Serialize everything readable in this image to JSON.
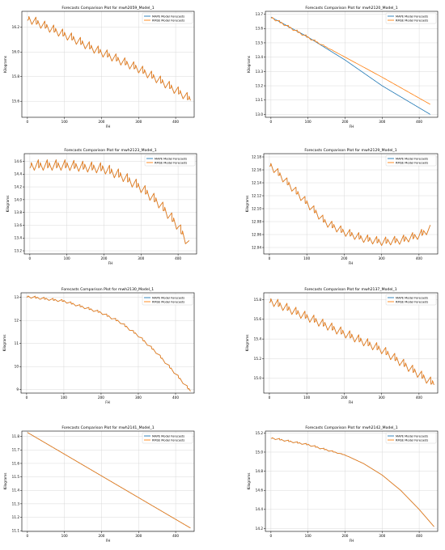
{
  "chart_data": [
    {
      "type": "line",
      "title": "Forecasts Comparison Plot for mwh2059_Model_1",
      "xlabel": "FH",
      "ylabel": "Kilograms",
      "xlim": [
        -15,
        450
      ],
      "ylim": [
        15.47,
        16.33
      ],
      "xticks": [
        0,
        100,
        200,
        300,
        400
      ],
      "yticks": [
        15.6,
        15.8,
        16.0,
        16.2
      ],
      "ytick_decimals": 1,
      "grid": true,
      "legend": "top-right",
      "series": [
        {
          "name": "MAPE Model Forecasts",
          "color": "#1f77b4",
          "shape": "periodic",
          "x": [
            0,
            60,
            120,
            180,
            240,
            300,
            360,
            420,
            440
          ],
          "y": [
            16.28,
            16.2,
            16.12,
            16.03,
            15.95,
            15.87,
            15.77,
            15.66,
            15.62
          ],
          "amplitude": 0.04,
          "period": 24
        },
        {
          "name": "RMSE Model Forecasts",
          "color": "#ff7f0e",
          "shape": "periodic",
          "x": [
            0,
            60,
            120,
            180,
            240,
            300,
            360,
            420,
            440
          ],
          "y": [
            16.28,
            16.2,
            16.12,
            16.03,
            15.95,
            15.87,
            15.77,
            15.66,
            15.62
          ],
          "amplitude": 0.04,
          "period": 24
        }
      ]
    },
    {
      "type": "line",
      "title": "Forecasts Comparison Plot for mwh2120_Model_1",
      "xlabel": "FH",
      "ylabel": "Kilograms",
      "xlim": [
        -15,
        450
      ],
      "ylim": [
        12.98,
        13.72
      ],
      "xticks": [
        0,
        100,
        200,
        300,
        400
      ],
      "yticks": [
        13.0,
        13.1,
        13.2,
        13.3,
        13.4,
        13.5,
        13.6,
        13.7
      ],
      "ytick_decimals": 1,
      "grid": true,
      "legend": "top-right",
      "series": [
        {
          "name": "MAPE Model Forecasts",
          "color": "#1f77b4",
          "shape": "smooth",
          "x": [
            0,
            100,
            200,
            300,
            430
          ],
          "y": [
            13.68,
            13.54,
            13.38,
            13.2,
            13.0
          ]
        },
        {
          "name": "RMSE Model Forecasts",
          "color": "#ff7f0e",
          "shape": "periodic",
          "x": [
            0,
            100,
            200,
            300,
            430
          ],
          "y": [
            13.68,
            13.54,
            13.4,
            13.26,
            13.07
          ],
          "amplitude": 0.01,
          "period": 24,
          "fade_after": 100
        }
      ]
    },
    {
      "type": "line",
      "title": "Forecasts Comparison Plot for mwh2123_Model_1",
      "xlabel": "FH",
      "ylabel": "Kilograms",
      "xlim": [
        -15,
        450
      ],
      "ylim": [
        13.15,
        14.72
      ],
      "xticks": [
        0,
        100,
        200,
        300,
        400
      ],
      "yticks": [
        13.2,
        13.4,
        13.6,
        13.8,
        14.0,
        14.2,
        14.4,
        14.6
      ],
      "ytick_decimals": 1,
      "grid": true,
      "legend": "top-right",
      "series": [
        {
          "name": "MAPE Model Forecasts",
          "color": "#1f77b4",
          "shape": "periodic",
          "x": [
            0,
            100,
            200,
            250,
            300,
            350,
            400,
            430
          ],
          "y": [
            14.55,
            14.55,
            14.5,
            14.38,
            14.2,
            13.95,
            13.6,
            13.3
          ],
          "amplitude": 0.09,
          "period": 24
        },
        {
          "name": "RMSE Model Forecasts",
          "color": "#ff7f0e",
          "shape": "periodic",
          "x": [
            0,
            100,
            200,
            250,
            300,
            350,
            400,
            430
          ],
          "y": [
            14.55,
            14.55,
            14.5,
            14.38,
            14.2,
            13.95,
            13.6,
            13.3
          ],
          "amplitude": 0.09,
          "period": 24
        }
      ]
    },
    {
      "type": "line",
      "title": "Forecasts Comparison Plot for mwh2129_Model_1",
      "xlabel": "FH",
      "ylabel": "Kilograms",
      "xlim": [
        -15,
        450
      ],
      "ylim": [
        12.03,
        12.185
      ],
      "xticks": [
        0,
        100,
        200,
        300,
        400
      ],
      "yticks": [
        12.04,
        12.06,
        12.08,
        12.1,
        12.12,
        12.14,
        12.16,
        12.18
      ],
      "ytick_decimals": 2,
      "grid": true,
      "legend": "top-right",
      "series": [
        {
          "name": "MAPE Model Forecasts",
          "color": "#1f77b4",
          "shape": "periodic",
          "x": [
            0,
            50,
            100,
            150,
            200,
            250,
            300,
            350,
            400,
            430
          ],
          "y": [
            12.17,
            12.14,
            12.11,
            12.08,
            12.065,
            12.055,
            12.05,
            12.052,
            12.06,
            12.07
          ],
          "amplitude": 0.007,
          "period": 24
        },
        {
          "name": "RMSE Model Forecasts",
          "color": "#ff7f0e",
          "shape": "periodic",
          "x": [
            0,
            50,
            100,
            150,
            200,
            250,
            300,
            350,
            400,
            430
          ],
          "y": [
            12.17,
            12.14,
            12.11,
            12.08,
            12.065,
            12.055,
            12.05,
            12.052,
            12.06,
            12.07
          ],
          "amplitude": 0.007,
          "period": 24
        }
      ]
    },
    {
      "type": "line",
      "title": "Forecasts Comparison Plot for mwh2130_Model_1",
      "xlabel": "FH",
      "ylabel": "Kilograms",
      "xlim": [
        -15,
        450
      ],
      "ylim": [
        8.85,
        13.2
      ],
      "xticks": [
        0,
        100,
        200,
        300,
        400
      ],
      "yticks": [
        9,
        10,
        11,
        12,
        13
      ],
      "ytick_decimals": 0,
      "grid": true,
      "legend": "top-right",
      "series": [
        {
          "name": "MAPE Model Forecasts",
          "color": "#1f77b4",
          "shape": "periodic",
          "x": [
            0,
            100,
            200,
            250,
            300,
            350,
            400,
            440
          ],
          "y": [
            13.05,
            12.85,
            12.35,
            11.95,
            11.35,
            10.6,
            9.7,
            8.95
          ],
          "amplitude": 0.06,
          "period": 24
        },
        {
          "name": "RMSE Model Forecasts",
          "color": "#ff7f0e",
          "shape": "periodic",
          "x": [
            0,
            100,
            200,
            250,
            300,
            350,
            400,
            440
          ],
          "y": [
            13.05,
            12.85,
            12.35,
            11.95,
            11.35,
            10.6,
            9.7,
            8.95
          ],
          "amplitude": 0.06,
          "period": 24
        }
      ]
    },
    {
      "type": "line",
      "title": "Forecasts Comparison Plot for mwh2137_Model_1",
      "xlabel": "FH",
      "ylabel": "Kilograms",
      "xlim": [
        -15,
        450
      ],
      "ylim": [
        14.85,
        15.87
      ],
      "xticks": [
        0,
        100,
        200,
        300,
        400
      ],
      "yticks": [
        15.0,
        15.2,
        15.4,
        15.6,
        15.8
      ],
      "ytick_decimals": 1,
      "grid": true,
      "legend": "top-right",
      "series": [
        {
          "name": "MAPE Model Forecasts",
          "color": "#1f77b4",
          "shape": "periodic",
          "x": [
            0,
            60,
            120,
            180,
            240,
            300,
            360,
            420,
            440
          ],
          "y": [
            15.8,
            15.7,
            15.6,
            15.5,
            15.4,
            15.3,
            15.15,
            15.0,
            14.95
          ],
          "amplitude": 0.05,
          "period": 24
        },
        {
          "name": "RMSE Model Forecasts",
          "color": "#ff7f0e",
          "shape": "periodic",
          "x": [
            0,
            60,
            120,
            180,
            240,
            300,
            360,
            420,
            440
          ],
          "y": [
            15.8,
            15.7,
            15.6,
            15.5,
            15.4,
            15.3,
            15.15,
            15.0,
            14.95
          ],
          "amplitude": 0.05,
          "period": 24
        }
      ]
    },
    {
      "type": "line",
      "title": "Forecasts Comparison Plot for mwh2141_Model_1",
      "xlabel": "FH",
      "ylabel": "Kilograms",
      "xlim": [
        -15,
        450
      ],
      "ylim": [
        11.095,
        11.84
      ],
      "xticks": [
        0,
        100,
        200,
        300,
        400
      ],
      "yticks": [
        11.1,
        11.2,
        11.3,
        11.4,
        11.5,
        11.6,
        11.7,
        11.8
      ],
      "ytick_decimals": 1,
      "grid": true,
      "legend": "top-right",
      "series": [
        {
          "name": "MAPE Model Forecasts",
          "color": "#1f77b4",
          "shape": "smooth",
          "x": [
            0,
            440
          ],
          "y": [
            11.83,
            11.12
          ]
        },
        {
          "name": "RMSE Model Forecasts",
          "color": "#ff7f0e",
          "shape": "smooth",
          "x": [
            0,
            440
          ],
          "y": [
            11.83,
            11.12
          ]
        }
      ]
    },
    {
      "type": "line",
      "title": "Forecasts Comparison Plot for mwh2142_Model_1",
      "xlabel": "FH",
      "ylabel": "Kilograms",
      "xlim": [
        -15,
        450
      ],
      "ylim": [
        14.17,
        15.22
      ],
      "xticks": [
        0,
        100,
        200,
        300,
        400
      ],
      "yticks": [
        14.2,
        14.4,
        14.6,
        14.8,
        15.0,
        15.2
      ],
      "ytick_decimals": 1,
      "grid": true,
      "legend": "top-right",
      "series": [
        {
          "name": "MAPE Model Forecasts",
          "color": "#1f77b4",
          "shape": "periodic",
          "x": [
            0,
            100,
            200,
            250,
            300,
            350,
            400,
            440
          ],
          "y": [
            15.15,
            15.08,
            14.97,
            14.88,
            14.76,
            14.6,
            14.4,
            14.22
          ],
          "amplitude": 0.01,
          "period": 24,
          "fade_after": 140
        },
        {
          "name": "RMSE Model Forecasts",
          "color": "#ff7f0e",
          "shape": "periodic",
          "x": [
            0,
            100,
            200,
            250,
            300,
            350,
            400,
            440
          ],
          "y": [
            15.15,
            15.08,
            14.97,
            14.88,
            14.76,
            14.6,
            14.4,
            14.22
          ],
          "amplitude": 0.01,
          "period": 24,
          "fade_after": 140
        }
      ]
    }
  ]
}
